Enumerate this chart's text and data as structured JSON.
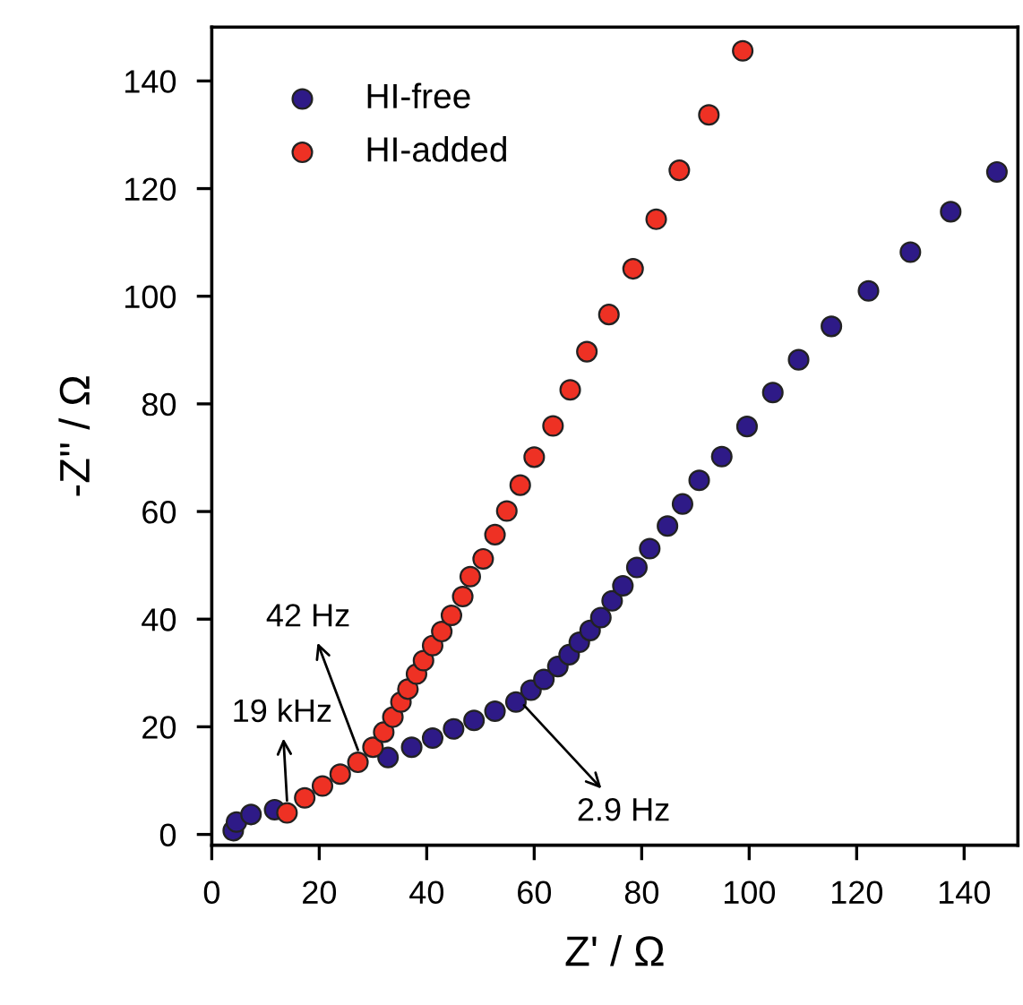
{
  "chart_data": {
    "type": "scatter",
    "xlabel": "Z' / Ω",
    "ylabel": "-Z'' / Ω",
    "xlim": [
      0,
      150
    ],
    "ylim": [
      -2,
      150
    ],
    "xticks": [
      0,
      20,
      40,
      60,
      80,
      100,
      120,
      140
    ],
    "yticks": [
      0,
      20,
      40,
      60,
      80,
      100,
      120,
      140
    ],
    "marker": "circle",
    "grid": false,
    "legend": "top left",
    "series": [
      {
        "name": "HI-free",
        "color": "#2e1a87",
        "x": [
          4.0,
          4.6,
          7.3,
          11.7,
          15.6,
          19.5,
          23.9,
          28.3,
          32.8,
          37.2,
          41.1,
          45.0,
          48.8,
          52.7,
          56.6,
          59.4,
          61.8,
          64.4,
          66.5,
          68.4,
          70.4,
          72.4,
          74.5,
          76.5,
          79.1,
          81.5,
          84.8,
          87.6,
          90.7,
          94.9,
          99.6,
          104.4,
          109.2,
          115.3,
          122.2,
          130.0,
          137.5,
          146.1
        ],
        "values": [
          0.7,
          2.3,
          3.7,
          4.6,
          null,
          null,
          null,
          null,
          14.3,
          16.2,
          17.9,
          19.6,
          21.2,
          22.9,
          24.6,
          26.8,
          28.8,
          31.2,
          33.4,
          35.7,
          37.9,
          40.3,
          43.4,
          46.2,
          49.6,
          53.1,
          57.3,
          61.4,
          65.8,
          70.2,
          75.8,
          82.1,
          88.2,
          94.4,
          101.0,
          108.2,
          115.7,
          123.1
        ]
      },
      {
        "name": "HI-added",
        "color": "#ee3124",
        "x": [
          14.0,
          17.3,
          20.6,
          23.9,
          27.2,
          30.0,
          32.0,
          33.7,
          35.2,
          36.5,
          38.1,
          39.4,
          41.1,
          42.8,
          44.6,
          46.7,
          48.1,
          50.5,
          52.7,
          54.9,
          57.4,
          60.0,
          63.5,
          66.7,
          69.8,
          73.9,
          78.4,
          82.7,
          87.0,
          92.5,
          98.8
        ],
        "values": [
          4.0,
          6.8,
          9.0,
          11.2,
          13.4,
          16.2,
          19.0,
          21.8,
          24.6,
          27.0,
          29.8,
          32.3,
          35.1,
          37.7,
          40.7,
          44.2,
          47.9,
          51.2,
          55.7,
          60.1,
          64.9,
          70.1,
          75.9,
          82.6,
          89.7,
          96.6,
          105.1,
          114.3,
          123.4,
          133.7,
          145.6
        ]
      }
    ],
    "annotations": [
      {
        "text": "42 Hz",
        "x": 27.2,
        "y": 15.7
      },
      {
        "text": "19 kHz",
        "x": 14,
        "y": 6.3
      },
      {
        "text": "2.9 Hz",
        "x": 58.1,
        "y": 24
      }
    ]
  }
}
